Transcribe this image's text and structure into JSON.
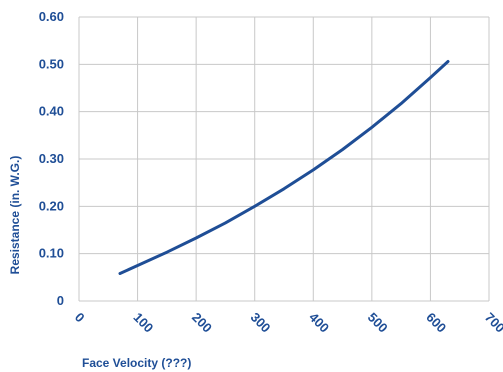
{
  "chart_data": {
    "type": "line",
    "title": "",
    "xlabel": "Face Velocity (???)",
    "ylabel": "Resistance (in. W.G.)",
    "xlim": [
      0,
      700
    ],
    "ylim": [
      0,
      0.6
    ],
    "x_ticks": [
      "0",
      "100",
      "200",
      "300",
      "400",
      "500",
      "600",
      "700"
    ],
    "y_ticks": [
      "0",
      "0.10",
      "0.20",
      "0.30",
      "0.40",
      "0.50",
      "0.60"
    ],
    "grid": true,
    "series": [
      {
        "color": "#1f4e96",
        "x": [
          70,
          100,
          150,
          200,
          250,
          300,
          350,
          400,
          450,
          500,
          550,
          600,
          630
        ],
        "y": [
          0.058,
          0.075,
          0.103,
          0.133,
          0.165,
          0.2,
          0.237,
          0.277,
          0.32,
          0.367,
          0.417,
          0.472,
          0.506
        ]
      }
    ]
  },
  "colors": {
    "text": "#1f4e96",
    "grid": "#c8c8c8",
    "line": "#1f4e96"
  }
}
